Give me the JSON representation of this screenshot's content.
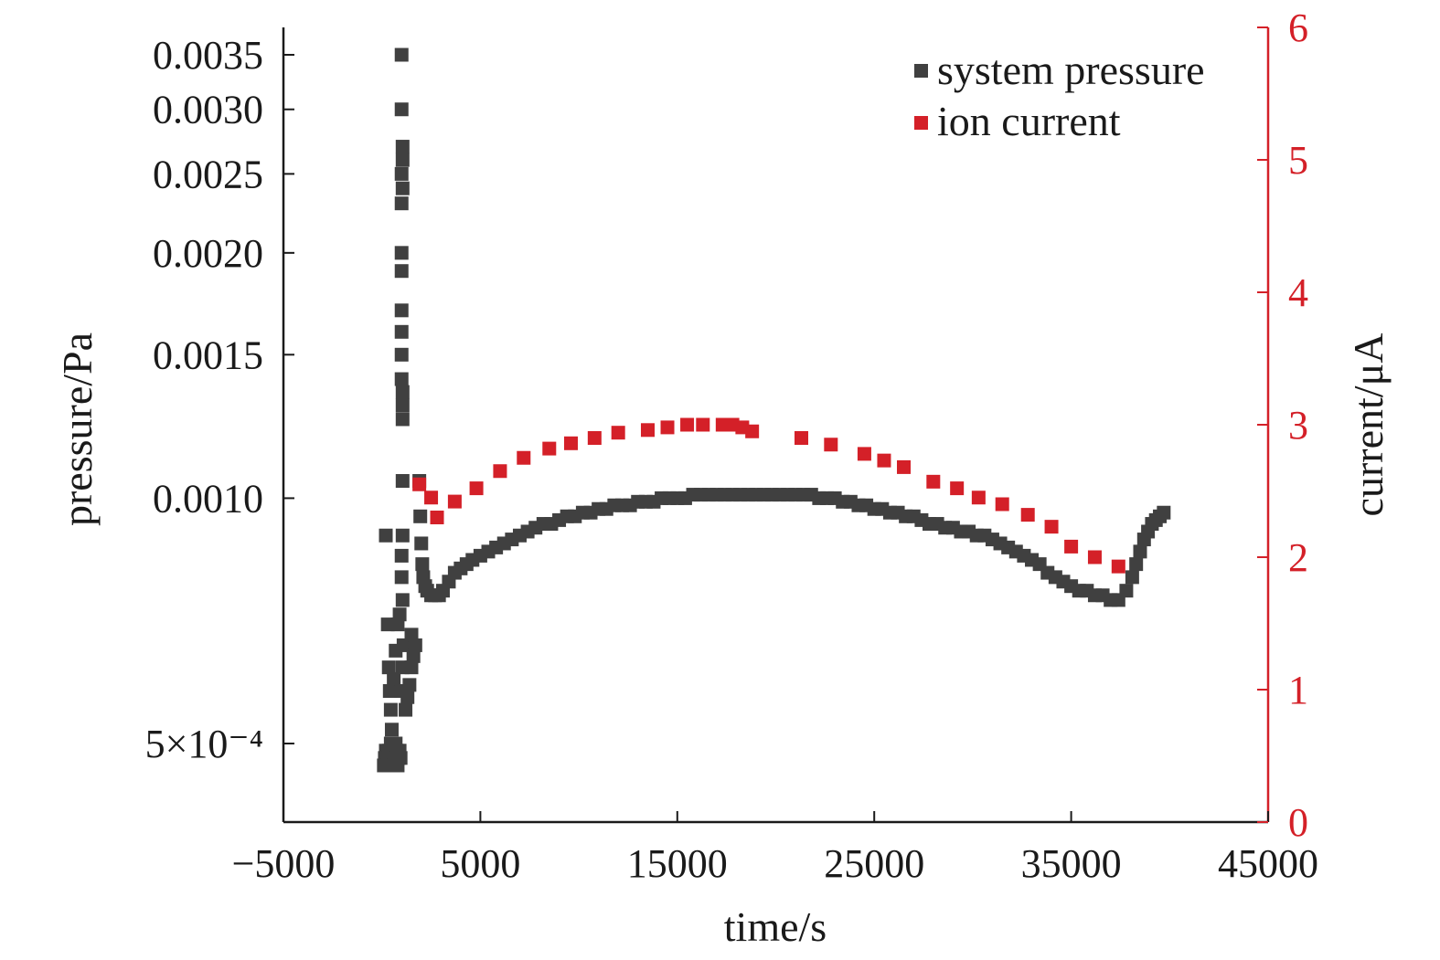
{
  "chart_data": {
    "type": "scatter",
    "xlabel": "time/s",
    "ylabel_left": "pressure/Pa",
    "ylabel_right": "current/μA",
    "xlim": [
      -5000,
      45000
    ],
    "x_ticks": [
      -5000,
      5000,
      15000,
      25000,
      35000,
      45000
    ],
    "x_tick_labels": [
      "−5000",
      "5000",
      "15000",
      "25000",
      "35000",
      "45000"
    ],
    "ylim_left": [
      0.00043,
      0.0037
    ],
    "y_left_scale": "log",
    "y_left_ticks": [
      0.0005,
      0.001,
      0.0015,
      0.002,
      0.0025,
      0.003,
      0.0035
    ],
    "y_left_tick_labels": [
      "5×10⁻⁴",
      "0.0010",
      "0.0015",
      "0.0020",
      "0.0025",
      "0.0030",
      "0.0035"
    ],
    "ylim_right": [
      0,
      6
    ],
    "y_right_ticks": [
      0,
      1,
      2,
      3,
      4,
      5,
      6
    ],
    "y_right_tick_labels": [
      "0",
      "1",
      "2",
      "3",
      "4",
      "5",
      "6"
    ],
    "grid": false,
    "legend_position": "top-right",
    "colors": {
      "system_pressure": "#404040",
      "ion_current": "#d42028",
      "right_axis": "#d42028",
      "left_axis": "#1a1a1a"
    },
    "series": [
      {
        "name": "system pressure",
        "axis": "left",
        "marker": "square",
        "points": [
          [
            100,
            0.00047
          ],
          [
            150,
            0.00048
          ],
          [
            200,
            0.00049
          ],
          [
            250,
            0.00047
          ],
          [
            300,
            0.00048
          ],
          [
            350,
            0.00049
          ],
          [
            400,
            0.00047
          ],
          [
            450,
            0.0005
          ],
          [
            500,
            0.00048
          ],
          [
            550,
            0.00049
          ],
          [
            600,
            0.00047
          ],
          [
            650,
            0.00048
          ],
          [
            700,
            0.0005
          ],
          [
            750,
            0.00049
          ],
          [
            800,
            0.00047
          ],
          [
            850,
            0.00048
          ],
          [
            900,
            0.00049
          ],
          [
            950,
            0.00048
          ],
          [
            200,
            0.0009
          ],
          [
            300,
            0.0007
          ],
          [
            350,
            0.00062
          ],
          [
            400,
            0.00058
          ],
          [
            450,
            0.00055
          ],
          [
            500,
            0.00052
          ],
          [
            600,
            0.0006
          ],
          [
            700,
            0.00065
          ],
          [
            800,
            0.0007
          ],
          [
            900,
            0.00072
          ],
          [
            1000,
            0.00058
          ],
          [
            1050,
            0.00062
          ],
          [
            1100,
            0.00066
          ],
          [
            1000,
            0.002
          ],
          [
            1000,
            0.0023
          ],
          [
            1000,
            0.0025
          ],
          [
            1000,
            0.003
          ],
          [
            1000,
            0.0035
          ],
          [
            1050,
            0.0027
          ],
          [
            1050,
            0.0026
          ],
          [
            1050,
            0.0024
          ],
          [
            1000,
            0.0019
          ],
          [
            1000,
            0.0017
          ],
          [
            1000,
            0.0016
          ],
          [
            1000,
            0.0015
          ],
          [
            1000,
            0.0014
          ],
          [
            1050,
            0.00135
          ],
          [
            1050,
            0.0013
          ],
          [
            1050,
            0.00125
          ],
          [
            1050,
            0.00105
          ],
          [
            1050,
            0.0009
          ],
          [
            1000,
            0.00085
          ],
          [
            1000,
            0.0008
          ],
          [
            1050,
            0.00075
          ],
          [
            1200,
            0.00055
          ],
          [
            1300,
            0.00057
          ],
          [
            1400,
            0.00059
          ],
          [
            1500,
            0.00062
          ],
          [
            1600,
            0.00064
          ],
          [
            1700,
            0.00066
          ],
          [
            1500,
            0.00068
          ],
          [
            1900,
            0.00105
          ],
          [
            1950,
            0.00095
          ],
          [
            2000,
            0.00088
          ],
          [
            2050,
            0.00083
          ],
          [
            2100,
            0.0008
          ],
          [
            2200,
            0.00078
          ],
          [
            2300,
            0.00077
          ],
          [
            2500,
            0.00076
          ],
          [
            2700,
            0.00076
          ],
          [
            2900,
            0.00076
          ],
          [
            3100,
            0.00077
          ],
          [
            3400,
            0.00079
          ],
          [
            3700,
            0.00081
          ],
          [
            4000,
            0.00082
          ],
          [
            4300,
            0.00083
          ],
          [
            4600,
            0.00084
          ],
          [
            5000,
            0.00085
          ],
          [
            5400,
            0.00086
          ],
          [
            5800,
            0.00087
          ],
          [
            6200,
            0.00088
          ],
          [
            6600,
            0.00089
          ],
          [
            7000,
            0.0009
          ],
          [
            7400,
            0.00091
          ],
          [
            7800,
            0.00092
          ],
          [
            8200,
            0.00093
          ],
          [
            8600,
            0.00093
          ],
          [
            9000,
            0.00094
          ],
          [
            9400,
            0.00095
          ],
          [
            9800,
            0.00095
          ],
          [
            10200,
            0.00096
          ],
          [
            10600,
            0.00096
          ],
          [
            11000,
            0.00097
          ],
          [
            11400,
            0.00097
          ],
          [
            11800,
            0.00098
          ],
          [
            12200,
            0.00098
          ],
          [
            12600,
            0.00098
          ],
          [
            13000,
            0.00099
          ],
          [
            13400,
            0.00099
          ],
          [
            13800,
            0.00099
          ],
          [
            14200,
            0.001
          ],
          [
            14600,
            0.001
          ],
          [
            15000,
            0.001
          ],
          [
            15400,
            0.001
          ],
          [
            15800,
            0.00101
          ],
          [
            16200,
            0.00101
          ],
          [
            16600,
            0.00101
          ],
          [
            17000,
            0.00101
          ],
          [
            17400,
            0.00101
          ],
          [
            17800,
            0.00101
          ],
          [
            18200,
            0.00101
          ],
          [
            18600,
            0.00101
          ],
          [
            19000,
            0.00101
          ],
          [
            19400,
            0.00101
          ],
          [
            19800,
            0.00101
          ],
          [
            20200,
            0.00101
          ],
          [
            20600,
            0.00101
          ],
          [
            21000,
            0.00101
          ],
          [
            21400,
            0.00101
          ],
          [
            21800,
            0.00101
          ],
          [
            22200,
            0.001
          ],
          [
            22600,
            0.001
          ],
          [
            23000,
            0.001
          ],
          [
            23400,
            0.00099
          ],
          [
            23800,
            0.00099
          ],
          [
            24200,
            0.00098
          ],
          [
            24600,
            0.00098
          ],
          [
            25000,
            0.00097
          ],
          [
            25400,
            0.00097
          ],
          [
            25800,
            0.00096
          ],
          [
            26200,
            0.00096
          ],
          [
            26600,
            0.00095
          ],
          [
            27000,
            0.00095
          ],
          [
            27400,
            0.00094
          ],
          [
            27800,
            0.00093
          ],
          [
            28200,
            0.00093
          ],
          [
            28600,
            0.00092
          ],
          [
            29000,
            0.00092
          ],
          [
            29400,
            0.00091
          ],
          [
            29800,
            0.00091
          ],
          [
            30200,
            0.0009
          ],
          [
            30600,
            0.0009
          ],
          [
            31000,
            0.00089
          ],
          [
            31400,
            0.00088
          ],
          [
            31800,
            0.00087
          ],
          [
            32200,
            0.00086
          ],
          [
            32600,
            0.00085
          ],
          [
            33000,
            0.00084
          ],
          [
            33400,
            0.00083
          ],
          [
            33800,
            0.00081
          ],
          [
            34200,
            0.0008
          ],
          [
            34600,
            0.00079
          ],
          [
            35000,
            0.00078
          ],
          [
            35400,
            0.00077
          ],
          [
            35800,
            0.00077
          ],
          [
            36200,
            0.00076
          ],
          [
            36600,
            0.00076
          ],
          [
            37000,
            0.00075
          ],
          [
            37400,
            0.00075
          ],
          [
            37800,
            0.00077
          ],
          [
            38100,
            0.0008
          ],
          [
            38300,
            0.00083
          ],
          [
            38500,
            0.00086
          ],
          [
            38700,
            0.00089
          ],
          [
            38900,
            0.00091
          ],
          [
            39100,
            0.00093
          ],
          [
            39300,
            0.00094
          ],
          [
            39500,
            0.00095
          ],
          [
            39700,
            0.00096
          ]
        ]
      },
      {
        "name": "ion current",
        "axis": "right",
        "marker": "square",
        "points": [
          [
            1900,
            2.55
          ],
          [
            2500,
            2.45
          ],
          [
            2800,
            2.3
          ],
          [
            3700,
            2.42
          ],
          [
            4800,
            2.52
          ],
          [
            6000,
            2.65
          ],
          [
            7200,
            2.75
          ],
          [
            8500,
            2.82
          ],
          [
            9600,
            2.86
          ],
          [
            10800,
            2.9
          ],
          [
            12000,
            2.94
          ],
          [
            13500,
            2.96
          ],
          [
            14500,
            2.98
          ],
          [
            15500,
            3.0
          ],
          [
            16300,
            3.0
          ],
          [
            17300,
            3.0
          ],
          [
            17800,
            3.0
          ],
          [
            18300,
            2.98
          ],
          [
            18800,
            2.95
          ],
          [
            21300,
            2.9
          ],
          [
            22800,
            2.85
          ],
          [
            24500,
            2.78
          ],
          [
            25500,
            2.73
          ],
          [
            26500,
            2.68
          ],
          [
            28000,
            2.57
          ],
          [
            29200,
            2.52
          ],
          [
            30300,
            2.45
          ],
          [
            31500,
            2.4
          ],
          [
            32800,
            2.32
          ],
          [
            34000,
            2.23
          ],
          [
            35000,
            2.08
          ],
          [
            36200,
            2.0
          ],
          [
            37400,
            1.93
          ]
        ]
      }
    ]
  }
}
